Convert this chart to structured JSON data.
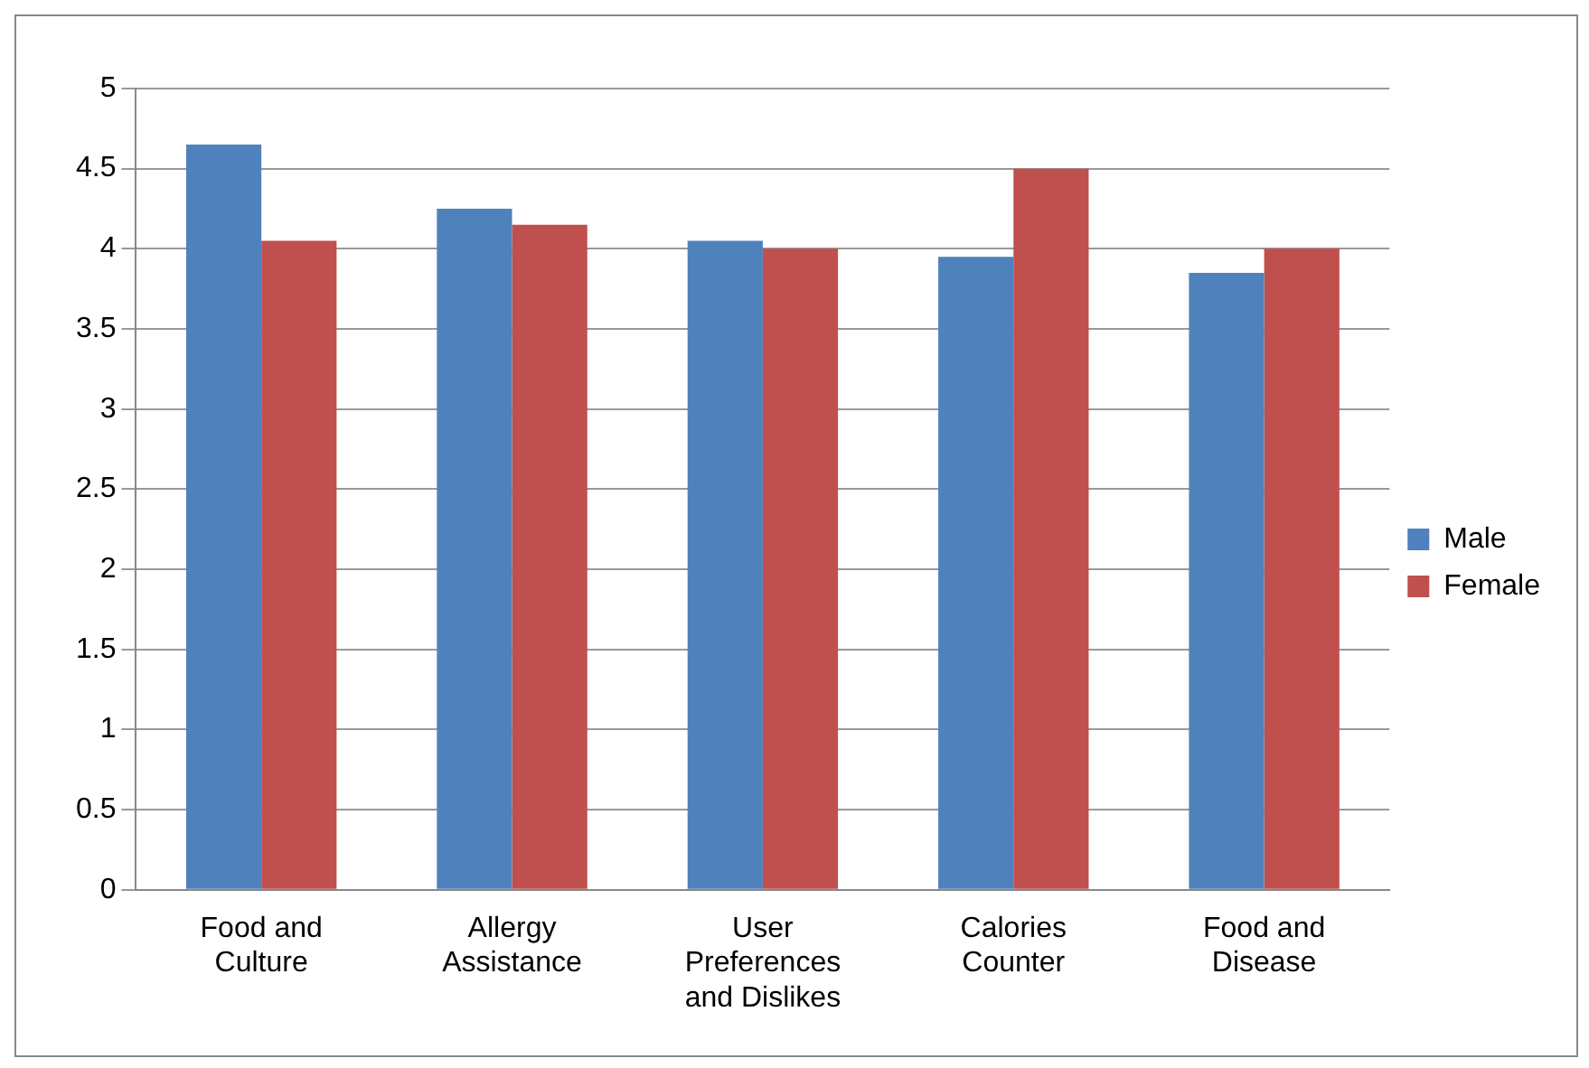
{
  "chart_data": {
    "type": "bar",
    "categories": [
      "Food and Culture",
      "Allergy Assistance",
      "User Preferences and Dislikes",
      "Calories Counter",
      "Food and Disease"
    ],
    "series": [
      {
        "name": "Male",
        "color": "#4f81bd",
        "values": [
          4.65,
          4.25,
          4.05,
          3.95,
          3.85
        ]
      },
      {
        "name": "Female",
        "color": "#c0504d",
        "values": [
          4.05,
          4.15,
          4.0,
          4.5,
          4.0
        ]
      }
    ],
    "ylim": [
      0,
      5
    ],
    "yticks": [
      0,
      0.5,
      1,
      1.5,
      2,
      2.5,
      3,
      3.5,
      4,
      4.5,
      5
    ],
    "grid": "y",
    "legend": "right"
  }
}
